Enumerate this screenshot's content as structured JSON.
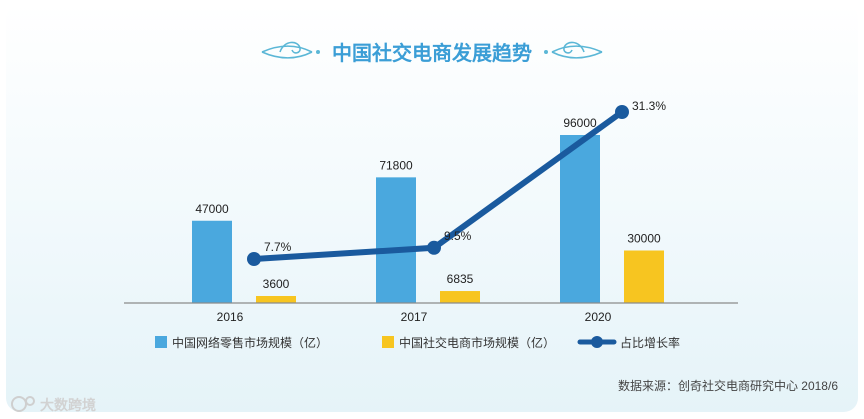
{
  "chart_data": {
    "type": "bar",
    "title": "中国社交电商发展趋势",
    "categories": [
      "2016",
      "2017",
      "2020"
    ],
    "series": [
      {
        "name": "中国网络零售市场规模（亿）",
        "kind": "bar",
        "color": "#4aa8de",
        "values": [
          47000,
          71800,
          96000
        ],
        "labels": [
          "47000",
          "71800",
          "96000"
        ]
      },
      {
        "name": "中国社交电商市场规模（亿）",
        "kind": "bar",
        "color": "#f7c520",
        "values": [
          3600,
          6835,
          30000
        ],
        "labels": [
          "3600",
          "6835",
          "30000"
        ]
      },
      {
        "name": "占比增长率",
        "kind": "line",
        "color": "#1a5a9e",
        "values": [
          7.7,
          9.5,
          31.3
        ],
        "labels": [
          "7.7%",
          "9.5%",
          "31.3%"
        ]
      }
    ],
    "legend_position": "bottom",
    "grid": false
  },
  "source_note": "数据来源：创奇社交电商研究中心 2018/6",
  "watermark": "大数跨境",
  "colors": {
    "title": "#3b9ed6",
    "ornament": "#5bb7d6",
    "baseline": "#8a8a8a",
    "text": "#333333"
  }
}
